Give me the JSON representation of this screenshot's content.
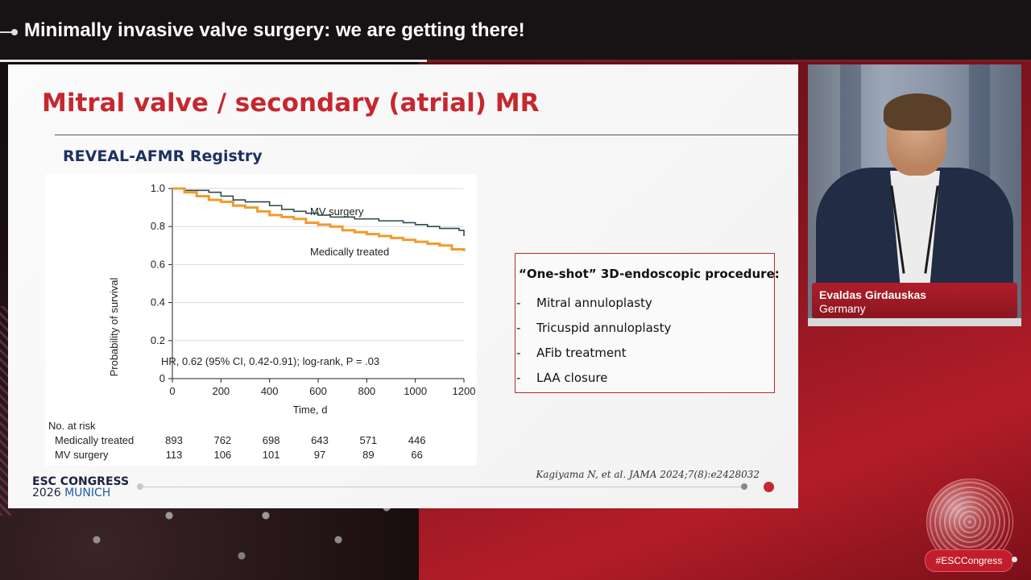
{
  "header": {
    "title": "Minimally invasive valve surgery: we are getting there!"
  },
  "slide": {
    "title": "Mitral valve / secondary (atrial) MR",
    "subtitle": "REVEAL-AFMR Registry",
    "procedure_box": {
      "heading": "“One-shot” 3D-endoscopic procedure:",
      "items": [
        "Mitral annuloplasty",
        "Tricuspid annuloplasty",
        "AFib treatment",
        "LAA closure"
      ],
      "bullet": "-"
    },
    "citation": "Kagiyama N, et al. JAMA 2024;7(8):e2428032",
    "footer_logo": {
      "line1": "ESC CONGRESS",
      "line2_year": "2026",
      "line2_city": "MUNICH"
    }
  },
  "chart_data": {
    "type": "line",
    "xlabel": "Time, d",
    "ylabel": "Probability of survival",
    "xlim": [
      0,
      1200
    ],
    "ylim": [
      0,
      1.0
    ],
    "x_ticks": [
      "0",
      "200",
      "400",
      "600",
      "800",
      "1000",
      "1200"
    ],
    "y_ticks": [
      "0",
      "0.2",
      "0.4",
      "0.6",
      "0.8",
      "1.0"
    ],
    "annotation": "HR, 0.62 (95% CI, 0.42-0.91); log-rank, P = .03",
    "series": [
      {
        "name": "MV surgery",
        "color": "#2f4a52",
        "x": [
          0,
          50,
          100,
          150,
          200,
          250,
          300,
          350,
          400,
          450,
          500,
          550,
          600,
          650,
          700,
          750,
          800,
          850,
          900,
          950,
          1000,
          1050,
          1100,
          1150,
          1180,
          1200
        ],
        "y": [
          1.0,
          0.99,
          0.99,
          0.98,
          0.96,
          0.94,
          0.93,
          0.93,
          0.91,
          0.89,
          0.88,
          0.87,
          0.86,
          0.85,
          0.85,
          0.84,
          0.84,
          0.83,
          0.83,
          0.82,
          0.81,
          0.8,
          0.79,
          0.79,
          0.78,
          0.75
        ]
      },
      {
        "name": "Medically treated",
        "color": "#f29a2e",
        "x": [
          0,
          50,
          100,
          150,
          200,
          250,
          300,
          350,
          400,
          450,
          500,
          550,
          600,
          650,
          700,
          750,
          800,
          850,
          900,
          950,
          1000,
          1050,
          1100,
          1150,
          1200
        ],
        "y": [
          1.0,
          0.98,
          0.96,
          0.94,
          0.93,
          0.91,
          0.9,
          0.88,
          0.86,
          0.85,
          0.84,
          0.82,
          0.81,
          0.8,
          0.78,
          0.77,
          0.76,
          0.75,
          0.74,
          0.73,
          0.72,
          0.71,
          0.7,
          0.68,
          0.67
        ]
      }
    ],
    "at_risk": {
      "label": "No. at risk",
      "rows": [
        {
          "name": "Medically treated",
          "values": [
            "893",
            "762",
            "698",
            "643",
            "571",
            "446"
          ]
        },
        {
          "name": "MV surgery",
          "values": [
            "113",
            "106",
            "101",
            "97",
            "89",
            "66"
          ]
        }
      ]
    }
  },
  "speaker": {
    "name": "Evaldas Girdauskas",
    "country": "Germany"
  },
  "hashtag": "#ESCCongress"
}
